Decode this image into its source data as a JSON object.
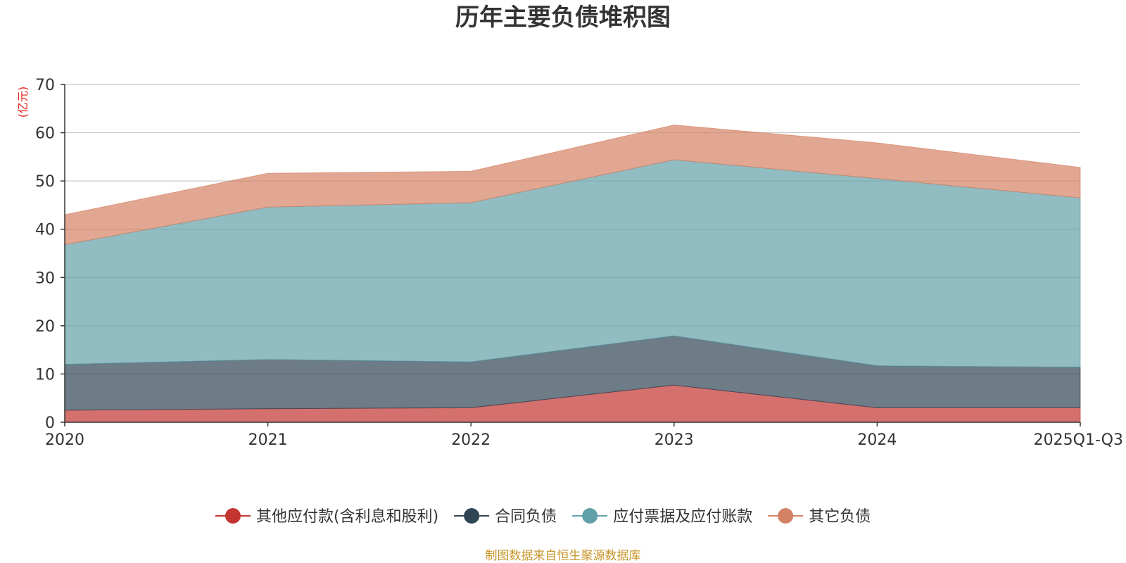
{
  "chart_data": {
    "type": "area",
    "stacked": true,
    "title": "历年主要负债堆积图",
    "unit_label": "(亿元)",
    "categories": [
      "2020",
      "2021",
      "2022",
      "2023",
      "2024",
      "2025Q1-Q3"
    ],
    "ylim": [
      0,
      70
    ],
    "yticks": [
      0,
      10,
      20,
      30,
      40,
      50,
      60,
      70
    ],
    "grid": true,
    "legend_position": "bottom-center",
    "series": [
      {
        "name": "其他应付款(含利息和股利)",
        "color": "#c23531",
        "values": [
          2.5,
          2.8,
          3.0,
          7.7,
          3.0,
          3.0
        ]
      },
      {
        "name": "合同负债",
        "color": "#2f4554",
        "values": [
          9.5,
          10.2,
          9.5,
          10.2,
          8.7,
          8.4
        ]
      },
      {
        "name": "应付票据及应付账款",
        "color": "#61a0a8",
        "values": [
          24.8,
          31.6,
          33.0,
          36.5,
          38.8,
          35.1
        ]
      },
      {
        "name": "其它负债",
        "color": "#d48265",
        "values": [
          6.2,
          7.0,
          6.5,
          7.2,
          7.4,
          6.3
        ]
      }
    ],
    "source_note": "制图数据来自恒生聚源数据库"
  }
}
